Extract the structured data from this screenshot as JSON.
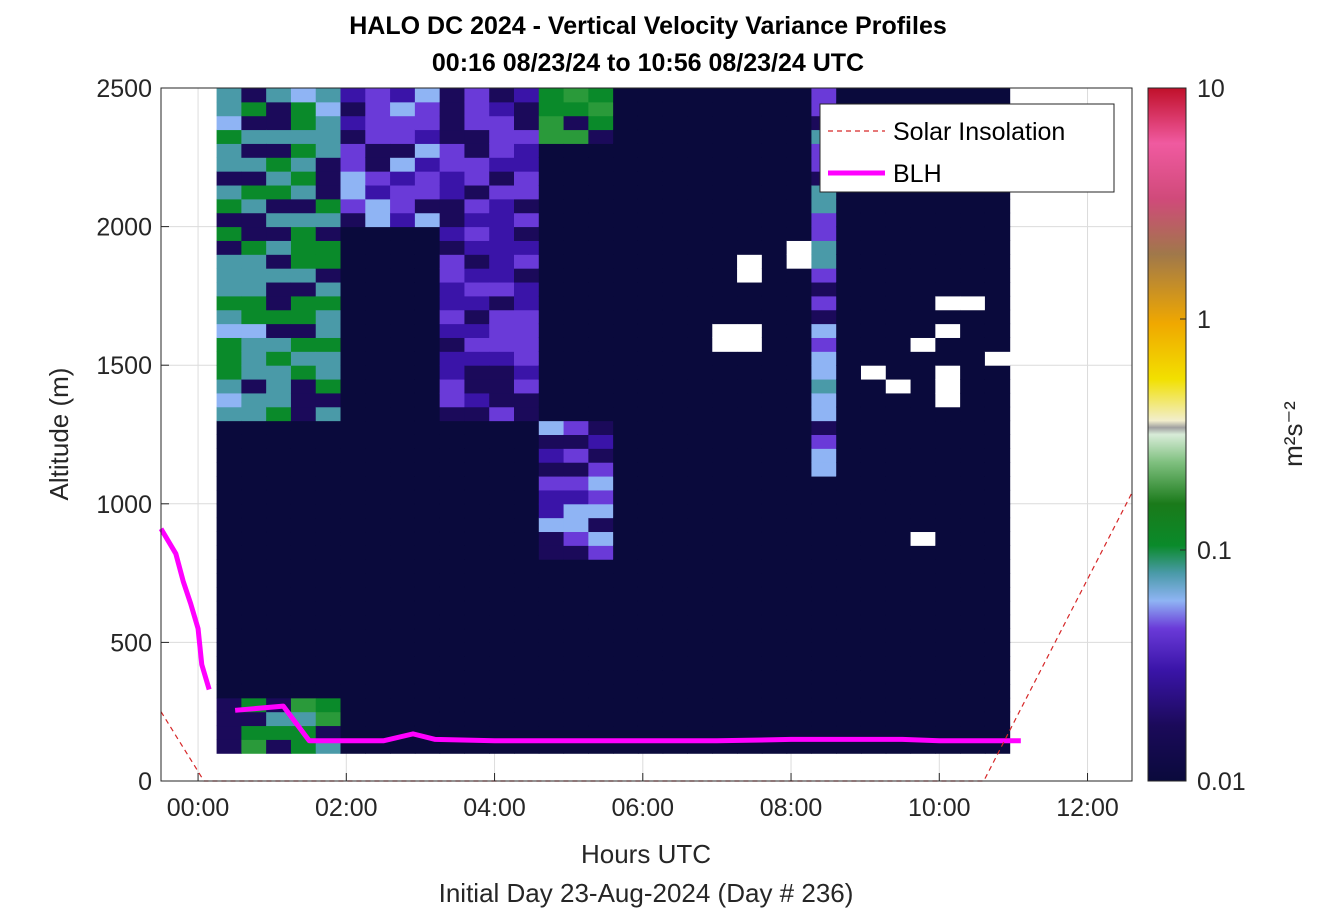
{
  "chart_data": {
    "type": "heatmap",
    "title": "HALO DC 2024 - Vertical Velocity Variance Profiles",
    "subtitle": "00:16 08/23/24 to 10:56 08/23/24  UTC",
    "xlabel": "Hours UTC",
    "xlabel2": "Initial Day 23-Aug-2024 (Day # 236)",
    "ylabel": "Altitude (m)",
    "xlim": [
      -0.5,
      12.6
    ],
    "ylim": [
      0,
      2500
    ],
    "x_ticks": [
      0,
      2,
      4,
      6,
      8,
      10,
      12
    ],
    "x_tick_labels": [
      "00:00",
      "02:00",
      "04:00",
      "06:00",
      "08:00",
      "10:00",
      "12:00"
    ],
    "y_ticks": [
      0,
      500,
      1000,
      1500,
      2000,
      2500
    ],
    "y_tick_labels": [
      "0",
      "500",
      "1000",
      "1500",
      "2000",
      "2500"
    ],
    "grid": true,
    "colorbar": {
      "label": "m²s⁻²",
      "scale": "log",
      "range": [
        0.01,
        10
      ],
      "ticks": [
        0.01,
        0.1,
        1,
        10
      ],
      "tick_labels": [
        "0.01",
        "0.1",
        "1",
        "10"
      ]
    },
    "legend": {
      "position": "top-right",
      "entries": [
        {
          "label": "Solar Insolation",
          "style": "dashed",
          "color": "#d62728"
        },
        {
          "label": "BLH",
          "style": "solid",
          "color": "#ff00ff"
        }
      ]
    },
    "heatmap": {
      "x_start": 0.25,
      "x_end": 10.95,
      "y_start": 100,
      "y_end": 2500,
      "time_columns": [
        0.25,
        0.58,
        0.92,
        1.25,
        1.58,
        1.92,
        2.25,
        2.58,
        2.92,
        3.25,
        3.58,
        3.92,
        4.25,
        4.58,
        4.92,
        5.25,
        5.58,
        5.92,
        6.25,
        6.58,
        6.92,
        7.25,
        7.58,
        7.92,
        8.25,
        8.58,
        8.92,
        9.25,
        9.58,
        9.92,
        10.25,
        10.58
      ],
      "background_variance": 0.01,
      "elevated_variance_regions": [
        {
          "time_range": [
            0.25,
            1.92
          ],
          "altitude_range": [
            1300,
            2500
          ],
          "variance": 0.06
        },
        {
          "time_range": [
            0.25,
            1.92
          ],
          "altitude_range": [
            100,
            300
          ],
          "variance": 0.08
        },
        {
          "time_range": [
            1.92,
            3.5
          ],
          "altitude_range": [
            2000,
            2500
          ],
          "variance": 0.03
        },
        {
          "time_range": [
            3.25,
            4.58
          ],
          "altitude_range": [
            1300,
            2500
          ],
          "variance": 0.025
        },
        {
          "time_range": [
            4.58,
            5.58
          ],
          "altitude_range": [
            800,
            1300
          ],
          "variance": 0.03
        },
        {
          "time_range": [
            4.58,
            5.58
          ],
          "altitude_range": [
            2300,
            2500
          ],
          "variance": 0.08
        },
        {
          "time_range": [
            8.25,
            8.58
          ],
          "altitude_range": [
            1100,
            2500
          ],
          "variance": 0.04
        }
      ],
      "missing_data_regions": [
        {
          "time_range": [
            7.25,
            7.58
          ],
          "altitude_range": [
            1800,
            1900
          ]
        },
        {
          "time_range": [
            7.92,
            8.25
          ],
          "altitude_range": [
            1850,
            1950
          ]
        },
        {
          "time_range": [
            6.92,
            7.58
          ],
          "altitude_range": [
            1550,
            1650
          ]
        },
        {
          "time_range": [
            9.92,
            10.58
          ],
          "altitude_range": [
            1700,
            1750
          ]
        },
        {
          "time_range": [
            9.92,
            10.25
          ],
          "altitude_range": [
            1600,
            1650
          ]
        },
        {
          "time_range": [
            9.58,
            9.92
          ],
          "altitude_range": [
            1550,
            1600
          ]
        },
        {
          "time_range": [
            10.58,
            10.95
          ],
          "altitude_range": [
            1500,
            1550
          ]
        },
        {
          "time_range": [
            8.92,
            9.25
          ],
          "altitude_range": [
            1450,
            1500
          ]
        },
        {
          "time_range": [
            9.92,
            10.25
          ],
          "altitude_range": [
            1350,
            1500
          ]
        },
        {
          "time_range": [
            9.25,
            9.58
          ],
          "altitude_range": [
            1400,
            1450
          ]
        },
        {
          "time_range": [
            9.58,
            9.92
          ],
          "altitude_range": [
            850,
            900
          ]
        }
      ]
    },
    "series": [
      {
        "name": "BLH",
        "x": [
          -0.5,
          -0.3,
          -0.2,
          -0.1,
          0.0,
          0.05,
          0.15
        ],
        "y": [
          910,
          820,
          720,
          640,
          550,
          420,
          330
        ],
        "segment": "early"
      },
      {
        "name": "BLH",
        "x": [
          0.5,
          1.15,
          1.5,
          2.0,
          2.5,
          2.9,
          3.2,
          4.0,
          5.0,
          5.8,
          6.0,
          7.0,
          8.0,
          9.0,
          9.5,
          10.0,
          10.5,
          11.1
        ],
        "y": [
          255,
          270,
          145,
          145,
          145,
          170,
          150,
          145,
          145,
          145,
          145,
          145,
          150,
          150,
          150,
          145,
          145,
          145
        ],
        "segment": "main"
      },
      {
        "name": "Solar Insolation",
        "x": [
          -0.5,
          0.08,
          10.6,
          12.6
        ],
        "y": [
          250,
          0,
          0,
          1040
        ]
      }
    ]
  }
}
